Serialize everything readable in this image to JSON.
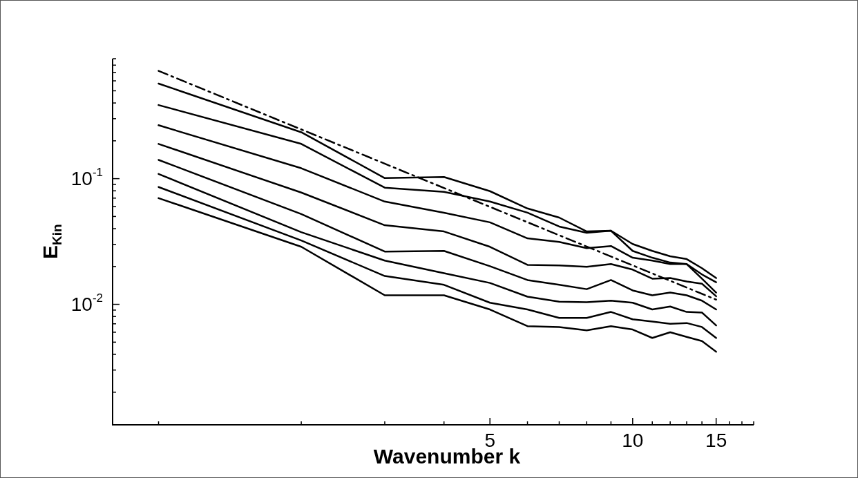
{
  "chart_data": {
    "type": "line",
    "xlabel": "Wavenumber k",
    "ylabel": "E$_{Kin}$",
    "log": "xy",
    "marker": "none",
    "x": [
      1,
      2,
      3,
      4,
      5,
      6,
      7,
      8,
      9,
      10,
      11,
      12,
      13,
      14,
      15
    ],
    "xlim": [
      0.8,
      18
    ],
    "ylim": [
      0.0011,
      0.9
    ],
    "xticks": [
      {
        "value": 1,
        "label": null
      },
      {
        "value": 2,
        "label": null
      },
      {
        "value": 3,
        "label": null
      },
      {
        "value": 4,
        "label": null
      },
      5,
      {
        "value": 6,
        "label": null
      },
      {
        "value": 7,
        "label": null
      },
      {
        "value": 8,
        "label": null
      },
      {
        "value": 9,
        "label": null
      },
      10,
      {
        "value": 11,
        "label": null
      },
      {
        "value": 12,
        "label": null
      },
      {
        "value": 13,
        "label": null
      },
      {
        "value": 14,
        "label": null
      },
      15,
      {
        "value": 16,
        "label": null
      },
      {
        "value": 17,
        "label": null
      },
      {
        "value": 18,
        "label": null
      }
    ],
    "yticks": [
      {
        "value": 0.002,
        "label": null
      },
      {
        "value": 0.003,
        "label": null
      },
      {
        "value": 0.004,
        "label": null
      },
      {
        "value": 0.005,
        "label": null
      },
      {
        "value": 0.006,
        "label": null
      },
      {
        "value": 0.007,
        "label": null
      },
      {
        "value": 0.008,
        "label": null
      },
      {
        "value": 0.009,
        "label": null
      },
      {
        "value": 0.01,
        "label": "10$^{-2}$"
      },
      {
        "value": 0.02,
        "label": null
      },
      {
        "value": 0.03,
        "label": null
      },
      {
        "value": 0.04,
        "label": null
      },
      {
        "value": 0.05,
        "label": null
      },
      {
        "value": 0.06,
        "label": null
      },
      {
        "value": 0.07,
        "label": null
      },
      {
        "value": 0.08,
        "label": null
      },
      {
        "value": 0.09,
        "label": null
      },
      {
        "value": 0.1,
        "label": "10$^{-1}$"
      },
      {
        "value": 0.2,
        "label": null
      },
      {
        "value": 0.3,
        "label": null
      },
      {
        "value": 0.4,
        "label": null
      },
      {
        "value": 0.5,
        "label": null
      },
      {
        "value": 0.6,
        "label": null
      },
      {
        "value": 0.7,
        "label": null
      },
      {
        "value": 0.8,
        "label": null
      },
      {
        "value": 0.9,
        "label": null
      }
    ],
    "series": [
      {
        "color": "#000000",
        "line_style": "dashed",
        "x": [
          1,
          15
        ],
        "values": [
          0.72,
          0.0109
        ]
      },
      {
        "color": "#000000",
        "values": [
          0.571,
          0.234,
          0.101,
          0.103,
          0.0795,
          0.0579,
          0.049,
          0.038,
          0.0385,
          0.0302,
          0.0266,
          0.0241,
          0.0229,
          0.0194,
          0.0162
        ]
      },
      {
        "color": "#000000",
        "values": [
          0.385,
          0.189,
          0.0848,
          0.0785,
          0.0657,
          0.0536,
          0.0416,
          0.0371,
          0.0385,
          0.0266,
          0.0235,
          0.0215,
          0.0209,
          0.0173,
          0.015
        ]
      },
      {
        "color": "#000000",
        "values": [
          0.266,
          0.121,
          0.0657,
          0.0536,
          0.0449,
          0.0335,
          0.0314,
          0.028,
          0.0291,
          0.0235,
          0.0223,
          0.0209,
          0.0209,
          0.016,
          0.0124
        ]
      },
      {
        "color": "#000000",
        "values": [
          0.189,
          0.0775,
          0.0426,
          0.038,
          0.0287,
          0.0206,
          0.0204,
          0.0199,
          0.0209,
          0.0189,
          0.016,
          0.0162,
          0.0152,
          0.0146,
          0.0116
        ]
      },
      {
        "color": "#000000",
        "values": [
          0.141,
          0.0523,
          0.0263,
          0.0266,
          0.0201,
          0.0156,
          0.0143,
          0.0132,
          0.0156,
          0.0129,
          0.0118,
          0.0124,
          0.0118,
          0.0107,
          0.0091
        ]
      },
      {
        "color": "#000000",
        "values": [
          0.109,
          0.0375,
          0.0223,
          0.0177,
          0.0148,
          0.0115,
          0.0105,
          0.0104,
          0.0107,
          0.0103,
          0.0091,
          0.0096,
          0.0087,
          0.0086,
          0.0068
        ]
      },
      {
        "color": "#000000",
        "values": [
          0.0858,
          0.0322,
          0.0168,
          0.0143,
          0.0103,
          0.0091,
          0.0078,
          0.0078,
          0.0087,
          0.0076,
          0.0073,
          0.007,
          0.0071,
          0.0066,
          0.0054
        ]
      },
      {
        "color": "#000000",
        "values": [
          0.07,
          0.0287,
          0.0118,
          0.0118,
          0.0091,
          0.0067,
          0.0066,
          0.0062,
          0.0067,
          0.0063,
          0.0054,
          0.006,
          0.0055,
          0.0051,
          0.0042
        ]
      }
    ]
  }
}
